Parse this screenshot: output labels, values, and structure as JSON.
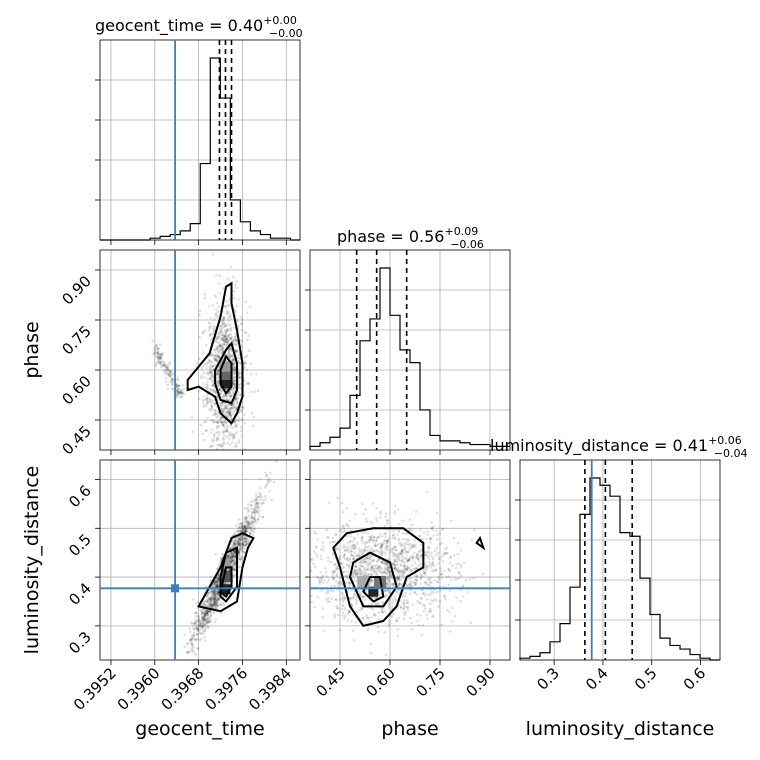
{
  "chart_data": {
    "type": "corner",
    "parameters": [
      "geocent_time",
      "phase",
      "luminosity_distance"
    ],
    "truth_color": "#3b7fc0",
    "titles": [
      {
        "param": "geocent_time",
        "value": "0.40",
        "plus": "+0.00",
        "minus": "−0.00"
      },
      {
        "param": "phase",
        "value": "0.56",
        "plus": "+0.09",
        "minus": "−0.06"
      },
      {
        "param": "luminosity_distance",
        "value": "0.41",
        "plus": "+0.06",
        "minus": "−0.04"
      }
    ],
    "axis_labels": {
      "x": [
        "geocent_time",
        "phase",
        "luminosity_distance"
      ],
      "y": [
        "phase",
        "luminosity_distance"
      ]
    },
    "ticks": {
      "geocent_time": [
        "0.3952",
        "0.3960",
        "0.3968",
        "0.3976",
        "0.3984"
      ],
      "phase": [
        "0.45",
        "0.60",
        "0.75",
        "0.90"
      ],
      "luminosity_distance": [
        "0.3",
        "0.4",
        "0.5",
        "0.6"
      ],
      "luminosity_distance_y": [
        "0.3",
        "0.4",
        "0.5",
        "0.6"
      ],
      "phase_y": [
        "0.45",
        "0.60",
        "0.75",
        "0.90"
      ]
    },
    "ranges": {
      "geocent_time": [
        0.395,
        0.39865
      ],
      "phase": [
        0.36,
        0.96
      ],
      "luminosity_distance": [
        0.23,
        0.64
      ]
    },
    "truths": {
      "geocent_time": 0.39637,
      "phase": null,
      "luminosity_distance": 0.377
    },
    "quantiles": {
      "geocent_time": [
        0.39718,
        0.39729,
        0.3974
      ],
      "phase": [
        0.5,
        0.56,
        0.65
      ],
      "luminosity_distance": [
        0.363,
        0.405,
        0.46
      ]
    },
    "hist_geocent_time": {
      "edges_start": 0.395,
      "bin_width": 0.000183,
      "counts": [
        0,
        0,
        0,
        0,
        0,
        1,
        2,
        3,
        5,
        9,
        42,
        100,
        78,
        22,
        10,
        5,
        3,
        1,
        1,
        0
      ]
    },
    "hist_phase": {
      "edges_start": 0.36,
      "bin_width": 0.03,
      "counts": [
        2,
        4,
        7,
        12,
        30,
        60,
        72,
        100,
        74,
        55,
        48,
        22,
        8,
        5,
        5,
        4,
        3,
        3,
        2,
        2
      ]
    },
    "hist_luminosity_distance": {
      "edges_start": 0.23,
      "bin_width": 0.0205,
      "counts": [
        1,
        2,
        4,
        10,
        20,
        40,
        80,
        100,
        96,
        90,
        70,
        68,
        45,
        25,
        12,
        8,
        6,
        3,
        1,
        0
      ]
    }
  }
}
